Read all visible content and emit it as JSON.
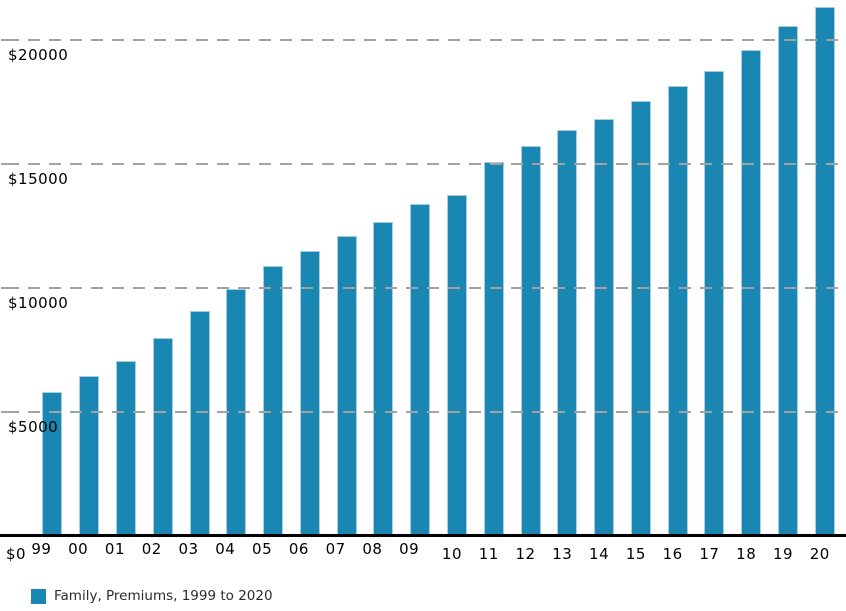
{
  "chart_data": {
    "type": "bar",
    "title": "",
    "xlabel": "",
    "ylabel": "",
    "categories": [
      "99",
      "00",
      "01",
      "02",
      "03",
      "04",
      "05",
      "06",
      "07",
      "08",
      "09",
      "10",
      "11",
      "12",
      "13",
      "14",
      "15",
      "16",
      "17",
      "18",
      "19",
      "20"
    ],
    "values": [
      5791,
      6438,
      7061,
      8003,
      9068,
      9950,
      10880,
      11480,
      12106,
      12680,
      13375,
      13770,
      15073,
      15745,
      16351,
      16834,
      17545,
      18142,
      18764,
      19616,
      20576,
      21342
    ],
    "series": [
      {
        "name": "Family, Premiums, 1999 to 2020",
        "values": [
          5791,
          6438,
          7061,
          8003,
          9068,
          9950,
          10880,
          11480,
          12106,
          12680,
          13375,
          13770,
          15073,
          15745,
          16351,
          16834,
          17545,
          18142,
          18764,
          19616,
          20576,
          21342
        ]
      }
    ],
    "y_ticks": [
      {
        "value": 0,
        "label": "$0"
      },
      {
        "value": 5000,
        "label": "$5000"
      },
      {
        "value": 10000,
        "label": "$10000"
      },
      {
        "value": 15000,
        "label": "$15000"
      },
      {
        "value": 20000,
        "label": "$20000"
      }
    ],
    "ylim": [
      0,
      21600
    ],
    "grid": "horizontal-dashed",
    "legend_position": "bottom-left",
    "colors": {
      "bar_fill": "#1a87b3",
      "bar_edge": "#a6d0e2",
      "gridline": "#a2a2a2",
      "axis": "#000000",
      "tick_text": "#000000",
      "legend_text": "#2b2b2b"
    }
  },
  "legend": {
    "label": "Family, Premiums, 1999 to 2020",
    "swatch_color": "#1a87b3"
  }
}
